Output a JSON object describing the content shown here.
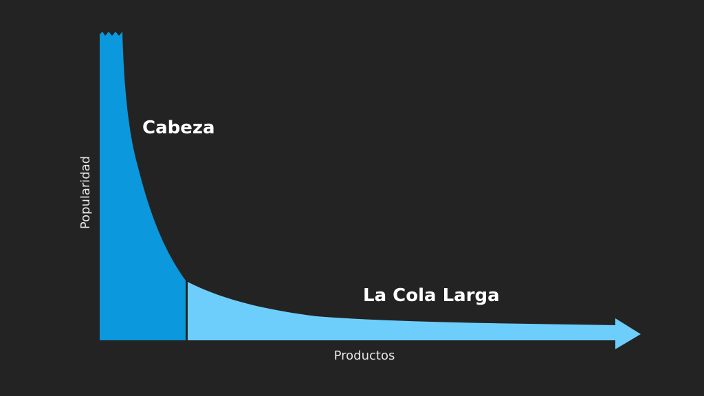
{
  "diagram": {
    "head_label": "Cabeza",
    "tail_label": "La Cola Larga",
    "y_axis_label": "Popularidad",
    "x_axis_label": "Productos"
  }
}
